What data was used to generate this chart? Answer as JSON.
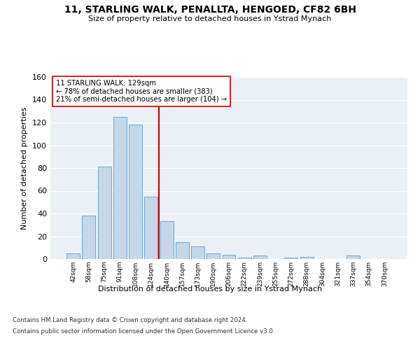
{
  "title": "11, STARLING WALK, PENALLTA, HENGOED, CF82 6BH",
  "subtitle": "Size of property relative to detached houses in Ystrad Mynach",
  "xlabel": "Distribution of detached houses by size in Ystrad Mynach",
  "ylabel": "Number of detached properties",
  "categories": [
    "42sqm",
    "58sqm",
    "75sqm",
    "91sqm",
    "108sqm",
    "124sqm",
    "140sqm",
    "157sqm",
    "173sqm",
    "190sqm",
    "206sqm",
    "222sqm",
    "239sqm",
    "255sqm",
    "272sqm",
    "288sqm",
    "304sqm",
    "321sqm",
    "337sqm",
    "354sqm",
    "370sqm"
  ],
  "values": [
    5,
    38,
    81,
    125,
    118,
    55,
    33,
    15,
    11,
    5,
    4,
    1,
    3,
    0,
    1,
    2,
    0,
    0,
    3,
    0,
    0
  ],
  "bar_color": "#c5d8e8",
  "bar_edge_color": "#6aaad4",
  "vline_color": "#cc0000",
  "annotation_text": "11 STARLING WALK: 129sqm\n← 78% of detached houses are smaller (383)\n21% of semi-detached houses are larger (104) →",
  "annotation_box_color": "#ffffff",
  "annotation_box_edge": "#cc0000",
  "ylim": [
    0,
    160
  ],
  "yticks": [
    0,
    20,
    40,
    60,
    80,
    100,
    120,
    140,
    160
  ],
  "footnote1": "Contains HM Land Registry data © Crown copyright and database right 2024.",
  "footnote2": "Contains public sector information licensed under the Open Government Licence v3.0.",
  "bg_color": "#eaf0f6",
  "fig_bg_color": "#ffffff",
  "grid_color": "#ffffff"
}
